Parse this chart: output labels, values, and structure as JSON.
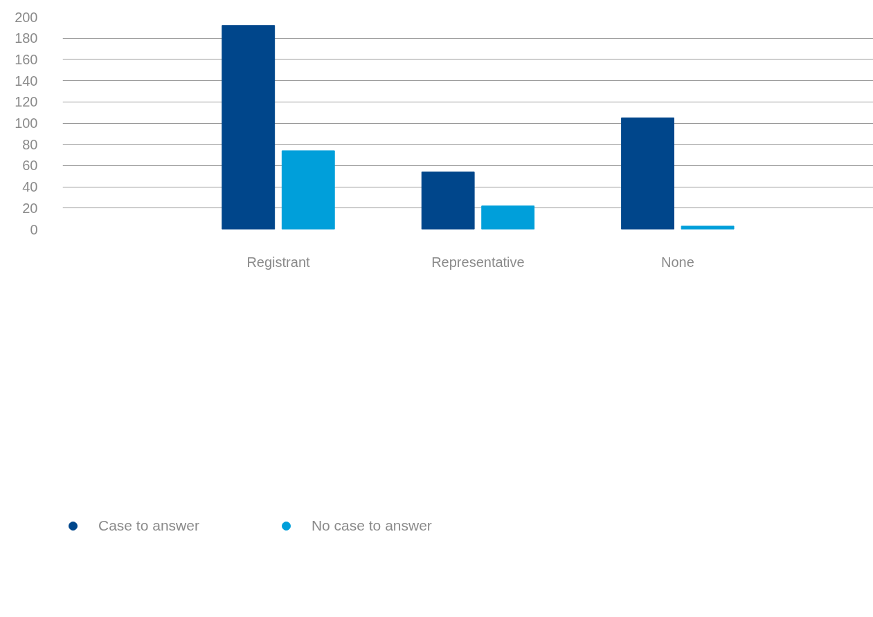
{
  "chart_data": {
    "type": "bar",
    "categories": [
      "Registrant",
      "Representative",
      "None"
    ],
    "series": [
      {
        "name": "Case to answer",
        "color": "#00468b",
        "values": [
          192,
          54,
          105
        ]
      },
      {
        "name": "No case to answer",
        "color": "#009fda",
        "values": [
          74,
          22,
          3
        ]
      }
    ],
    "ylim": [
      0,
      200
    ],
    "yticks": [
      0,
      20,
      40,
      60,
      80,
      100,
      120,
      140,
      160,
      180,
      200
    ],
    "grid": "y",
    "legend": "bottom left"
  }
}
